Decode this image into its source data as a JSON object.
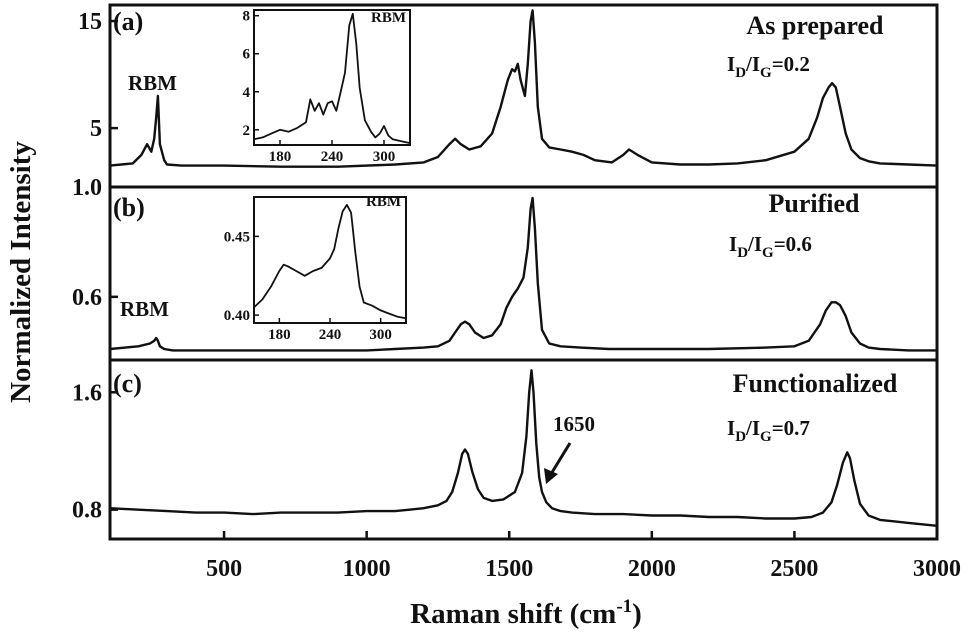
{
  "figure": {
    "ylabel": "Normalized Intensity",
    "xlabel": "Raman shift (cm",
    "xlabel_sup": "-1",
    "xlabel_close": ")"
  },
  "chart_data": {
    "type": "line",
    "xlim": [
      100,
      3000
    ],
    "xticks": [
      500,
      1000,
      1500,
      2000,
      2500,
      3000
    ],
    "panels": [
      {
        "tag": "(a)",
        "title": "As prepared",
        "ratio": {
          "prefix": "I",
          "d": "D",
          "slash": "/I",
          "g": "G",
          "value": "=0.2"
        },
        "ylim": [
          -0.5,
          16.5
        ],
        "yticks": [
          5,
          15
        ],
        "annotation": "RBM",
        "series": [
          {
            "x": [
              100,
              180,
              210,
              230,
              245,
              255,
              262,
              268,
              275,
              290,
              300,
              350,
              500,
              700,
              900,
              1100,
              1200,
              1250,
              1290,
              1310,
              1330,
              1360,
              1400,
              1440,
              1470,
              1495,
              1510,
              1520,
              1530,
              1540,
              1555,
              1565,
              1575,
              1582,
              1590,
              1600,
              1615,
              1640,
              1680,
              1720,
              1760,
              1800,
              1860,
              1900,
              1920,
              1950,
              2000,
              2100,
              2200,
              2300,
              2400,
              2500,
              2550,
              2580,
              2600,
              2620,
              2632,
              2645,
              2660,
              2680,
              2700,
              2730,
              2760,
              2800,
              2900,
              3000
            ],
            "y": [
              1.5,
              1.7,
              2.5,
              3.5,
              2.8,
              4.0,
              6.0,
              8.0,
              3.5,
              2.0,
              1.6,
              1.5,
              1.5,
              1.4,
              1.4,
              1.6,
              1.8,
              2.3,
              3.5,
              4.0,
              3.5,
              3.0,
              3.3,
              4.5,
              7.0,
              9.5,
              10.5,
              10.3,
              11.0,
              9.5,
              8.0,
              11.0,
              15.0,
              16.0,
              13.0,
              7.0,
              4.0,
              3.2,
              3.0,
              2.8,
              2.5,
              2.0,
              1.8,
              2.5,
              3.0,
              2.5,
              1.8,
              1.6,
              1.6,
              1.7,
              2.0,
              2.8,
              4.0,
              6.0,
              7.8,
              8.8,
              9.2,
              8.8,
              7.0,
              4.5,
              3.0,
              2.2,
              1.9,
              1.7,
              1.6,
              1.5
            ]
          }
        ],
        "inset": {
          "annotation": "RBM",
          "xlim": [
            150,
            330
          ],
          "ylim": [
            1.2,
            8.3
          ],
          "xticks": [
            180,
            240,
            300
          ],
          "yticks": [
            2,
            4,
            6,
            8
          ],
          "series": [
            {
              "x": [
                150,
                160,
                170,
                180,
                190,
                200,
                210,
                215,
                220,
                225,
                230,
                235,
                240,
                245,
                250,
                255,
                260,
                264,
                268,
                272,
                278,
                285,
                290,
                295,
                300,
                305,
                310,
                320,
                330
              ],
              "y": [
                1.5,
                1.6,
                1.8,
                2.0,
                1.9,
                2.1,
                2.4,
                3.6,
                3.0,
                3.4,
                2.8,
                3.4,
                3.5,
                3.0,
                4.0,
                5.0,
                7.5,
                8.1,
                6.5,
                4.2,
                2.5,
                1.9,
                1.6,
                1.8,
                2.2,
                1.7,
                1.5,
                1.4,
                1.3
              ]
            }
          ]
        }
      },
      {
        "tag": "(b)",
        "title": "Purified",
        "ratio": {
          "prefix": "I",
          "d": "D",
          "slash": "/I",
          "g": "G",
          "value": "=0.6"
        },
        "ylim": [
          0.37,
          1.0
        ],
        "yticks": [
          0.6,
          1.0
        ],
        "annotation": "RBM",
        "series": [
          {
            "x": [
              100,
              200,
              240,
              255,
              262,
              268,
              275,
              290,
              320,
              400,
              600,
              800,
              1000,
              1100,
              1200,
              1250,
              1290,
              1310,
              1330,
              1345,
              1360,
              1380,
              1410,
              1440,
              1470,
              1490,
              1510,
              1530,
              1550,
              1565,
              1575,
              1582,
              1590,
              1600,
              1615,
              1640,
              1680,
              1750,
              1850,
              2000,
              2200,
              2400,
              2500,
              2550,
              2590,
              2610,
              2630,
              2645,
              2660,
              2680,
              2700,
              2730,
              2760,
              2800,
              2900,
              3000
            ],
            "y": [
              0.41,
              0.42,
              0.43,
              0.44,
              0.45,
              0.44,
              0.42,
              0.41,
              0.405,
              0.405,
              0.405,
              0.405,
              0.405,
              0.41,
              0.415,
              0.42,
              0.44,
              0.47,
              0.5,
              0.51,
              0.5,
              0.47,
              0.45,
              0.46,
              0.5,
              0.56,
              0.6,
              0.63,
              0.67,
              0.78,
              0.92,
              0.96,
              0.85,
              0.65,
              0.48,
              0.43,
              0.42,
              0.415,
              0.41,
              0.41,
              0.41,
              0.415,
              0.42,
              0.44,
              0.5,
              0.55,
              0.58,
              0.58,
              0.57,
              0.53,
              0.47,
              0.43,
              0.415,
              0.41,
              0.405,
              0.405
            ]
          }
        ],
        "inset": {
          "annotation": "RBM",
          "xlim": [
            150,
            330
          ],
          "ylim": [
            0.395,
            0.475
          ],
          "xticks": [
            180,
            240,
            300
          ],
          "yticks": [
            0.4,
            0.45
          ],
          "series": [
            {
              "x": [
                150,
                160,
                170,
                180,
                185,
                190,
                200,
                210,
                220,
                230,
                240,
                245,
                250,
                255,
                260,
                265,
                270,
                275,
                280,
                290,
                300,
                310,
                320,
                330
              ],
              "y": [
                0.405,
                0.41,
                0.418,
                0.428,
                0.432,
                0.431,
                0.428,
                0.425,
                0.428,
                0.43,
                0.436,
                0.442,
                0.455,
                0.466,
                0.47,
                0.465,
                0.44,
                0.418,
                0.408,
                0.406,
                0.403,
                0.401,
                0.399,
                0.398
              ]
            }
          ]
        }
      },
      {
        "tag": "(c)",
        "title": "Functionalized",
        "ratio": {
          "prefix": "I",
          "d": "D",
          "slash": "/I",
          "g": "G",
          "value": "=0.7"
        },
        "ylim": [
          0.6,
          1.82
        ],
        "yticks": [
          0.8,
          1.6
        ],
        "annotation": "1650",
        "series": [
          {
            "x": [
              100,
              200,
              300,
              400,
              500,
              600,
              700,
              800,
              900,
              1000,
              1100,
              1150,
              1200,
              1250,
              1280,
              1300,
              1320,
              1335,
              1345,
              1355,
              1370,
              1390,
              1410,
              1440,
              1480,
              1520,
              1545,
              1560,
              1570,
              1578,
              1585,
              1595,
              1605,
              1615,
              1630,
              1650,
              1680,
              1720,
              1800,
              1900,
              2000,
              2100,
              2200,
              2300,
              2400,
              2500,
              2560,
              2600,
              2630,
              2650,
              2670,
              2685,
              2695,
              2710,
              2730,
              2760,
              2800,
              2900,
              3000
            ],
            "y": [
              0.81,
              0.8,
              0.79,
              0.78,
              0.78,
              0.77,
              0.78,
              0.78,
              0.78,
              0.79,
              0.79,
              0.8,
              0.81,
              0.83,
              0.86,
              0.92,
              1.05,
              1.18,
              1.21,
              1.18,
              1.06,
              0.94,
              0.88,
              0.86,
              0.87,
              0.92,
              1.05,
              1.3,
              1.6,
              1.75,
              1.6,
              1.25,
              1.02,
              0.92,
              0.85,
              0.81,
              0.79,
              0.78,
              0.77,
              0.77,
              0.76,
              0.76,
              0.75,
              0.75,
              0.74,
              0.74,
              0.75,
              0.78,
              0.85,
              0.97,
              1.12,
              1.19,
              1.15,
              1.0,
              0.84,
              0.76,
              0.73,
              0.71,
              0.69
            ]
          }
        ]
      }
    ]
  }
}
